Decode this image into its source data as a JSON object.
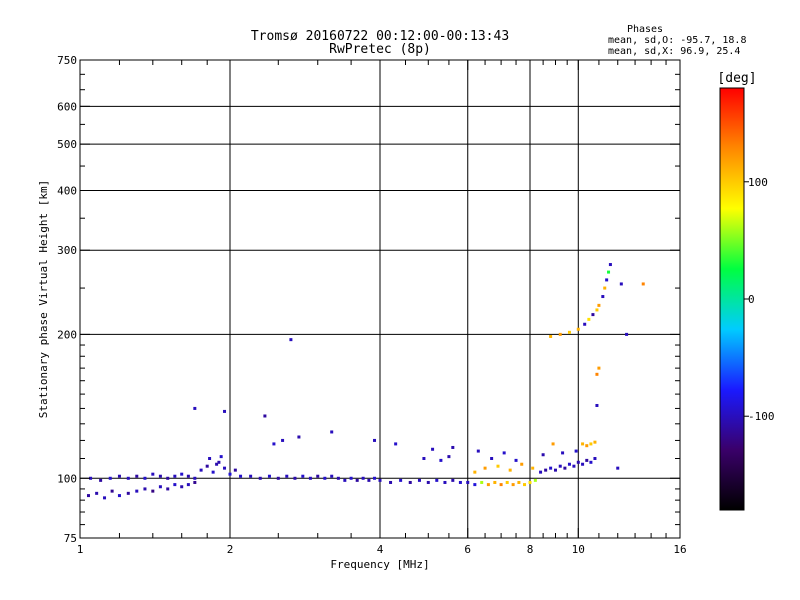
{
  "title_line1": "Tromsø 20160722 00:12:00-00:13:43",
  "title_line2": "RwPretec (8p)",
  "phases": {
    "heading": "Phases",
    "line_o": "mean, sd,O: -95.7, 18.8",
    "line_x": "mean, sd,X:  96.9, 25.4"
  },
  "colorbar": {
    "unit_label": "[deg]",
    "ticks": [
      {
        "value": 100,
        "label": "100"
      },
      {
        "value": 0,
        "label": "0"
      },
      {
        "value": -100,
        "label": "-100"
      }
    ],
    "min": -180,
    "max": 180,
    "colors": [
      "#000000",
      "#3a006a",
      "#1a1aff",
      "#00ccff",
      "#00ff40",
      "#ffff00",
      "#ff8800",
      "#ff0000"
    ]
  },
  "chart_data": {
    "type": "scatter",
    "xlabel": "Frequency [MHz]",
    "ylabel": "Stationary phase Virtual Height [km]",
    "x_scale": "log",
    "y_scale": "log",
    "xlim": [
      1,
      16
    ],
    "ylim": [
      75,
      750
    ],
    "x_ticks": [
      {
        "value": 1,
        "label": "1"
      },
      {
        "value": 2,
        "label": "2"
      },
      {
        "value": 4,
        "label": "4"
      },
      {
        "value": 6,
        "label": "6"
      },
      {
        "value": 8,
        "label": "8"
      },
      {
        "value": 10,
        "label": "10"
      },
      {
        "value": 16,
        "label": "16"
      }
    ],
    "y_ticks": [
      {
        "value": 75,
        "label": "75"
      },
      {
        "value": 100,
        "label": "100"
      },
      {
        "value": 200,
        "label": "200"
      },
      {
        "value": 300,
        "label": "300"
      },
      {
        "value": 400,
        "label": "400"
      },
      {
        "value": 500,
        "label": "500"
      },
      {
        "value": 600,
        "label": "600"
      },
      {
        "value": 750,
        "label": "750"
      }
    ],
    "grid_x": [
      2,
      4,
      6,
      8,
      10
    ],
    "grid_y": [
      100,
      200,
      300,
      400,
      500,
      600
    ],
    "points": [
      [
        1.04,
        92,
        -110
      ],
      [
        1.08,
        93,
        -105
      ],
      [
        1.12,
        91,
        -100
      ],
      [
        1.16,
        94,
        -115
      ],
      [
        1.2,
        92,
        -95
      ],
      [
        1.25,
        93,
        -110
      ],
      [
        1.3,
        94,
        -100
      ],
      [
        1.35,
        95,
        -105
      ],
      [
        1.4,
        94,
        -120
      ],
      [
        1.45,
        96,
        -100
      ],
      [
        1.5,
        95,
        -110
      ],
      [
        1.55,
        97,
        -95
      ],
      [
        1.6,
        96,
        -105
      ],
      [
        1.65,
        97,
        -100
      ],
      [
        1.7,
        98,
        -115
      ],
      [
        1.05,
        100,
        -100
      ],
      [
        1.1,
        99,
        -110
      ],
      [
        1.15,
        100,
        -95
      ],
      [
        1.2,
        101,
        -105
      ],
      [
        1.25,
        100,
        -100
      ],
      [
        1.3,
        101,
        -110
      ],
      [
        1.35,
        100,
        -95
      ],
      [
        1.4,
        102,
        -100
      ],
      [
        1.45,
        101,
        -105
      ],
      [
        1.5,
        100,
        -110
      ],
      [
        1.55,
        101,
        -100
      ],
      [
        1.6,
        102,
        -95
      ],
      [
        1.65,
        101,
        -105
      ],
      [
        1.7,
        100,
        -100
      ],
      [
        1.75,
        104,
        -100
      ],
      [
        1.8,
        106,
        -110
      ],
      [
        1.85,
        103,
        -95
      ],
      [
        1.9,
        108,
        -105
      ],
      [
        1.95,
        105,
        -100
      ],
      [
        2.0,
        102,
        -90
      ],
      [
        2.05,
        104,
        -110
      ],
      [
        2.1,
        101,
        -95
      ],
      [
        1.82,
        110,
        -100
      ],
      [
        1.88,
        107,
        -105
      ],
      [
        1.92,
        111,
        -95
      ],
      [
        2.2,
        101,
        -100
      ],
      [
        2.3,
        100,
        -105
      ],
      [
        2.4,
        101,
        -95
      ],
      [
        2.5,
        100,
        -110
      ],
      [
        2.6,
        101,
        -100
      ],
      [
        2.7,
        100,
        -105
      ],
      [
        2.8,
        101,
        -95
      ],
      [
        2.9,
        100,
        -100
      ],
      [
        3.0,
        101,
        -110
      ],
      [
        3.1,
        100,
        -95
      ],
      [
        3.2,
        101,
        -100
      ],
      [
        3.3,
        100,
        -105
      ],
      [
        3.4,
        99,
        -100
      ],
      [
        3.5,
        100,
        -95
      ],
      [
        3.6,
        99,
        -110
      ],
      [
        3.7,
        100,
        -100
      ],
      [
        3.8,
        99,
        -105
      ],
      [
        3.9,
        100,
        -95
      ],
      [
        4.0,
        99,
        -100
      ],
      [
        4.2,
        98,
        -105
      ],
      [
        4.4,
        99,
        -95
      ],
      [
        4.6,
        98,
        -110
      ],
      [
        4.8,
        99,
        -100
      ],
      [
        5.0,
        98,
        -105
      ],
      [
        5.2,
        99,
        -95
      ],
      [
        5.4,
        98,
        -100
      ],
      [
        5.6,
        99,
        -105
      ],
      [
        5.8,
        98,
        -95
      ],
      [
        6.0,
        98,
        -100
      ],
      [
        6.2,
        97,
        -90
      ],
      [
        6.4,
        98,
        60
      ],
      [
        6.6,
        97,
        120
      ],
      [
        6.8,
        98,
        110
      ],
      [
        7.0,
        97,
        130
      ],
      [
        7.2,
        98,
        100
      ],
      [
        7.4,
        97,
        120
      ],
      [
        7.6,
        98,
        110
      ],
      [
        7.8,
        97,
        100
      ],
      [
        8.0,
        98,
        90
      ],
      [
        8.2,
        99,
        60
      ],
      [
        8.4,
        103,
        -100
      ],
      [
        8.6,
        104,
        -110
      ],
      [
        8.8,
        105,
        -95
      ],
      [
        9.0,
        104,
        -105
      ],
      [
        9.2,
        106,
        -100
      ],
      [
        9.4,
        105,
        -110
      ],
      [
        9.6,
        107,
        -95
      ],
      [
        9.8,
        106,
        -100
      ],
      [
        10.0,
        108,
        -105
      ],
      [
        10.2,
        107,
        -100
      ],
      [
        10.4,
        109,
        -110
      ],
      [
        10.6,
        108,
        -95
      ],
      [
        10.8,
        110,
        -100
      ],
      [
        8.8,
        198,
        110
      ],
      [
        9.2,
        200,
        120
      ],
      [
        9.6,
        202,
        100
      ],
      [
        10.0,
        205,
        110
      ],
      [
        10.3,
        210,
        -100
      ],
      [
        10.5,
        215,
        90
      ],
      [
        10.7,
        220,
        -110
      ],
      [
        10.9,
        225,
        100
      ],
      [
        11.0,
        230,
        120
      ],
      [
        11.2,
        240,
        -100
      ],
      [
        11.3,
        250,
        110
      ],
      [
        11.4,
        260,
        -95
      ],
      [
        11.5,
        270,
        30
      ],
      [
        11.6,
        280,
        -100
      ],
      [
        10.2,
        118,
        110
      ],
      [
        10.4,
        117,
        120
      ],
      [
        10.6,
        118,
        100
      ],
      [
        10.8,
        119,
        110
      ],
      [
        10.9,
        165,
        130
      ],
      [
        11.0,
        170,
        120
      ],
      [
        10.9,
        142,
        -100
      ],
      [
        8.9,
        118,
        120
      ],
      [
        2.65,
        195,
        -100
      ],
      [
        1.7,
        140,
        -100
      ],
      [
        1.95,
        138,
        -100
      ],
      [
        2.35,
        135,
        -110
      ],
      [
        2.45,
        118,
        -95
      ],
      [
        2.55,
        120,
        -100
      ],
      [
        2.75,
        122,
        -105
      ],
      [
        3.2,
        125,
        -100
      ],
      [
        3.9,
        120,
        -100
      ],
      [
        4.3,
        118,
        -95
      ],
      [
        5.1,
        115,
        -100
      ],
      [
        5.6,
        116,
        -105
      ],
      [
        6.3,
        114,
        -100
      ],
      [
        7.1,
        113,
        -95
      ],
      [
        6.2,
        103,
        110
      ],
      [
        6.5,
        105,
        120
      ],
      [
        6.9,
        106,
        100
      ],
      [
        7.3,
        104,
        110
      ],
      [
        7.7,
        107,
        120
      ],
      [
        8.1,
        105,
        110
      ],
      [
        4.9,
        110,
        -100
      ],
      [
        5.3,
        109,
        -95
      ],
      [
        5.5,
        111,
        -105
      ],
      [
        6.7,
        110,
        -100
      ],
      [
        7.5,
        109,
        -95
      ],
      [
        8.5,
        112,
        -105
      ],
      [
        9.3,
        113,
        -100
      ],
      [
        9.9,
        114,
        -95
      ],
      [
        12.0,
        105,
        -100
      ],
      [
        12.5,
        200,
        -100
      ],
      [
        13.5,
        255,
        130
      ],
      [
        12.2,
        255,
        -100
      ]
    ]
  }
}
